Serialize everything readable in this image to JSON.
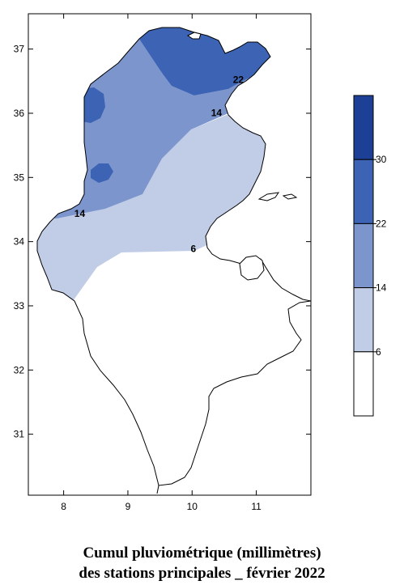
{
  "chart_data": {
    "type": "contour_map",
    "x_ticks": [
      "8",
      "9",
      "10",
      "11"
    ],
    "y_ticks": [
      "37",
      "36",
      "35",
      "34",
      "33",
      "32",
      "31"
    ],
    "xlim": [
      7.45,
      11.85
    ],
    "ylim": [
      30.05,
      37.55
    ],
    "legend_levels": [
      "30",
      "22",
      "14",
      "6"
    ],
    "legend_colors": [
      "#1e3f96",
      "#3d63b5",
      "#7c95cc",
      "#c1cce6",
      "#ffffff"
    ],
    "contour_labels": [
      {
        "text": "22",
        "lon": 10.72,
        "lat": 36.5
      },
      {
        "text": "14",
        "lon": 10.38,
        "lat": 35.98
      },
      {
        "text": "14",
        "lon": 8.25,
        "lat": 34.41
      },
      {
        "text": "6",
        "lon": 10.02,
        "lat": 33.86
      }
    ]
  },
  "caption": {
    "line1": "Cumul pluviométrique  (millimètres)",
    "line2": "des  stations principales _ février 2022"
  }
}
